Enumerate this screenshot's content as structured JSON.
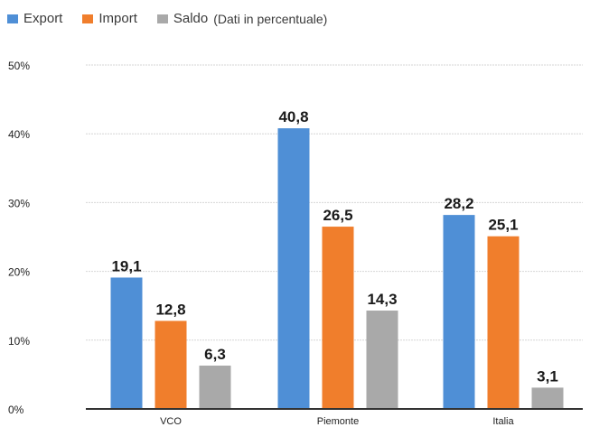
{
  "legend": {
    "items": [
      {
        "label": "Export",
        "color": "#4f8fd6"
      },
      {
        "label": "Import",
        "color": "#f07e2c"
      },
      {
        "label": "Saldo",
        "color": "#a9a9a9"
      }
    ],
    "note": "(Dati in percentuale)"
  },
  "chart_data": {
    "type": "bar",
    "categories": [
      "VCO",
      "Piemonte",
      "Italia"
    ],
    "series": [
      {
        "name": "Export",
        "values": [
          19.1,
          40.8,
          28.2
        ],
        "labels": [
          "19,1",
          "40,8",
          "28,2"
        ],
        "color": "#4f8fd6"
      },
      {
        "name": "Import",
        "values": [
          12.8,
          26.5,
          25.1
        ],
        "labels": [
          "12,8",
          "26,5",
          "25,1"
        ],
        "color": "#f07e2c"
      },
      {
        "name": "Saldo",
        "values": [
          6.3,
          14.3,
          3.1
        ],
        "labels": [
          "6,3",
          "14,3",
          "3,1"
        ],
        "color": "#a9a9a9"
      }
    ],
    "ylim": [
      0,
      50
    ],
    "yticks": [
      0,
      10,
      20,
      30,
      40,
      50
    ],
    "ytick_labels": [
      "0%",
      "10%",
      "20%",
      "30%",
      "40%",
      "50%"
    ],
    "grid": true,
    "legend_position": "top-left"
  }
}
